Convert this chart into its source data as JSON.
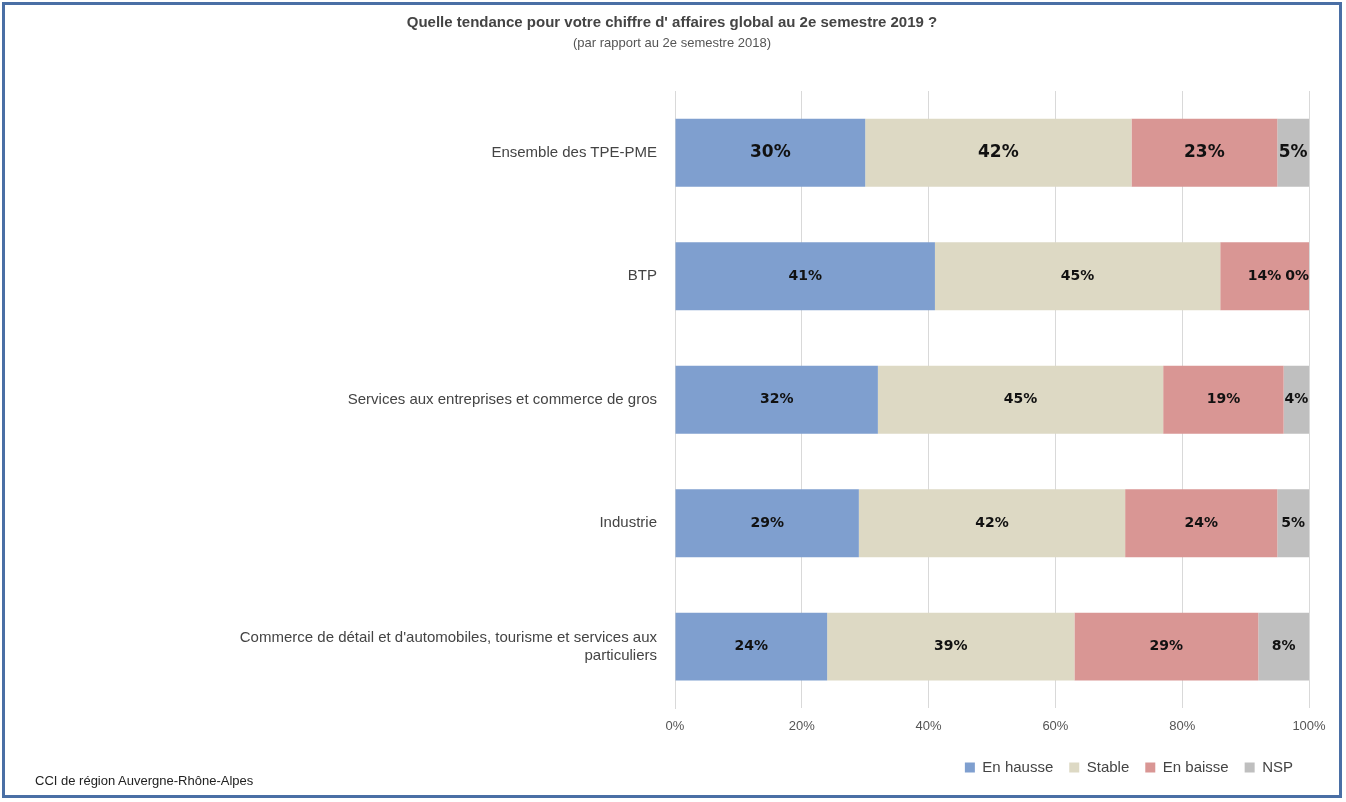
{
  "chart_data": {
    "type": "bar",
    "orientation": "horizontal",
    "stacked": true,
    "title": "Quelle tendance pour votre chiffre d' affaires global au 2e semestre 2019 ?",
    "subtitle": "(par rapport au 2e semestre 2018)",
    "annotations": [
      "CCI de région Auvergne-Rhône-Alpes"
    ],
    "categories": [
      "Ensemble des TPE-PME",
      "BTP",
      "Services aux entreprises et commerce de gros",
      "Industrie",
      "Commerce de détail et d'automobiles, tourisme et services aux particuliers"
    ],
    "series": [
      {
        "name": "En hausse",
        "color": "#7f9fcf",
        "values": [
          30,
          41,
          32,
          29,
          24
        ],
        "value_labels": [
          "30%",
          "41%",
          "32%",
          "29%",
          "24%"
        ]
      },
      {
        "name": "Stable",
        "color": "#ddd9c4",
        "values": [
          42,
          45,
          45,
          42,
          39
        ],
        "value_labels": [
          "42%",
          "45%",
          "45%",
          "42%",
          "39%"
        ]
      },
      {
        "name": "En baisse",
        "color": "#d99694",
        "values": [
          23,
          14,
          19,
          24,
          29
        ],
        "value_labels": [
          "23%",
          "14%",
          "19%",
          "24%",
          "29%"
        ]
      },
      {
        "name": "NSP",
        "color": "#bfbfbf",
        "values": [
          5,
          0,
          4,
          5,
          8
        ],
        "value_labels": [
          "5%",
          "0%",
          "4%",
          "5%",
          "8%"
        ]
      }
    ],
    "xlim": [
      0,
      100
    ],
    "xticks": [
      {
        "value": 0,
        "label": "0%"
      },
      {
        "value": 20,
        "label": "20%"
      },
      {
        "value": 40,
        "label": "40%"
      },
      {
        "value": 60,
        "label": "60%"
      },
      {
        "value": 80,
        "label": "80%"
      },
      {
        "value": 100,
        "label": "100%"
      }
    ],
    "grid": "x",
    "legend": "bottom"
  }
}
